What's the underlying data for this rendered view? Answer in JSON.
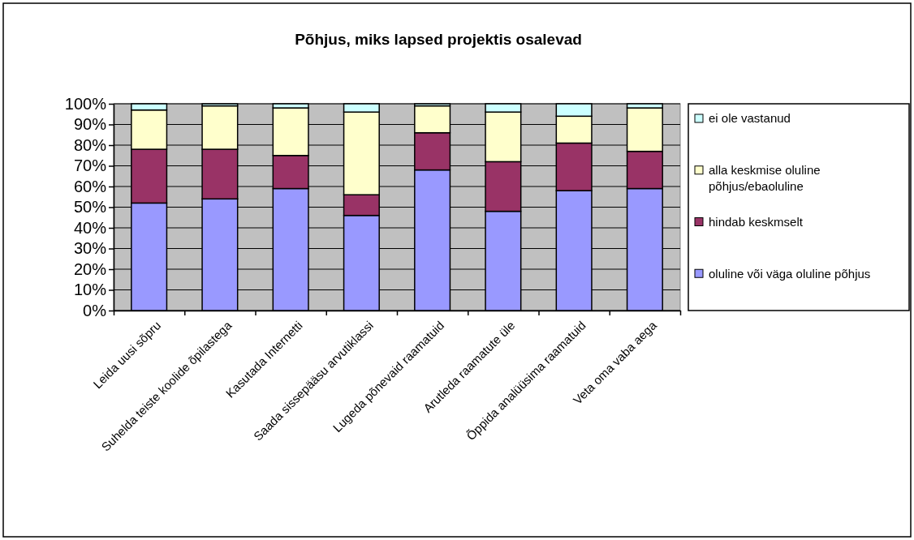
{
  "chart_data": {
    "type": "bar",
    "stacked": true,
    "title": "Põhjus, miks lapsed projektis osalevad",
    "categories": [
      "Leida uusi sõpru",
      "Suhelda teiste koolide õpilastega",
      "Kasutada Internetti",
      "Saada sissepääsu arvutiklassi",
      "Lugeda põnevaid raamatuid",
      "Arutleda raamatute üle",
      "Õppida analüüsima raamatuid",
      "Veta oma vaba aega"
    ],
    "series": [
      {
        "name": "oluline või väga oluline põhjus",
        "color": "#9999ff",
        "values": [
          52,
          54,
          59,
          46,
          68,
          48,
          58,
          59
        ]
      },
      {
        "name": "hindab keskmselt",
        "color": "#993366",
        "values": [
          26,
          24,
          16,
          10,
          18,
          24,
          23,
          18
        ]
      },
      {
        "name": "alla keskmise oluline põhjus/ebaoluline",
        "color": "#ffffcc",
        "values": [
          19,
          21,
          23,
          40,
          13,
          24,
          13,
          21
        ]
      },
      {
        "name": "ei ole vastanud",
        "color": "#ccffff",
        "values": [
          3,
          1,
          2,
          4,
          1,
          4,
          6,
          2
        ]
      }
    ],
    "ylim": [
      0,
      100
    ],
    "yticks": [
      {
        "value": 0,
        "label": "0%"
      },
      {
        "value": 10,
        "label": "10%"
      },
      {
        "value": 20,
        "label": "20%"
      },
      {
        "value": 30,
        "label": "30%"
      },
      {
        "value": 40,
        "label": "40%"
      },
      {
        "value": 50,
        "label": "50%"
      },
      {
        "value": 60,
        "label": "60%"
      },
      {
        "value": 70,
        "label": "70%"
      },
      {
        "value": 80,
        "label": "80%"
      },
      {
        "value": 90,
        "label": "90%"
      },
      {
        "value": 100,
        "label": "100%"
      }
    ],
    "grid": "y",
    "legend": "right"
  }
}
